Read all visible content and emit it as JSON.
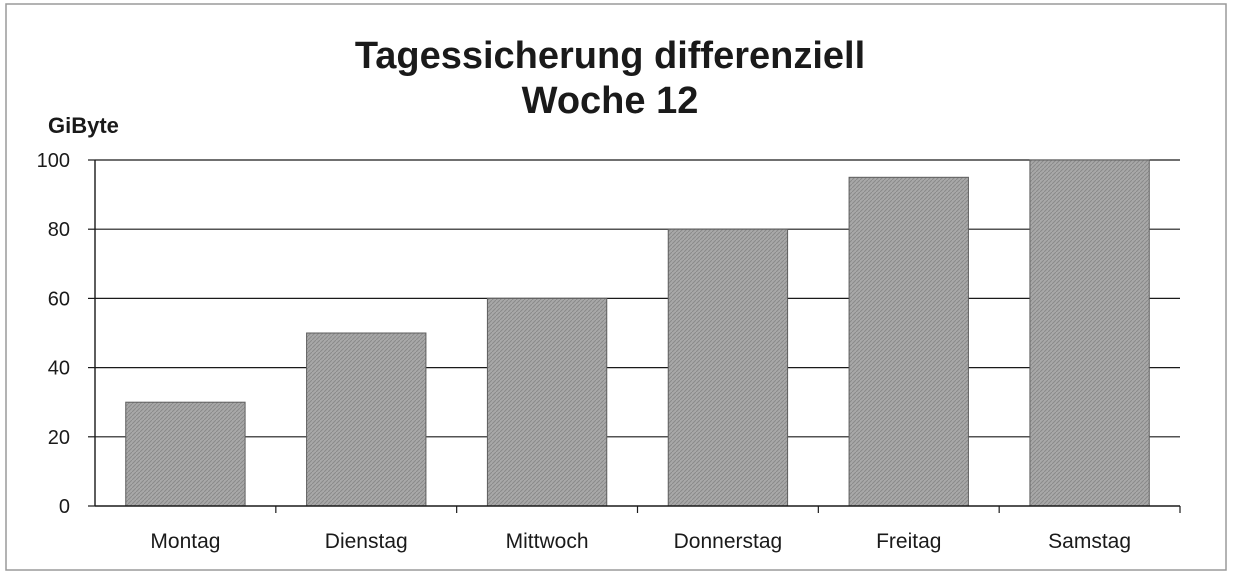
{
  "chart_data": {
    "type": "bar",
    "title": "Tagessicherung differenziell",
    "subtitle": "Woche 12",
    "ylabel": "GiByte",
    "xlabel": "",
    "categories": [
      "Montag",
      "Dienstag",
      "Mittwoch",
      "Donnerstag",
      "Freitag",
      "Samstag"
    ],
    "values": [
      30,
      50,
      60,
      80,
      95,
      100
    ],
    "ylim": [
      0,
      100
    ],
    "yticks": [
      0,
      20,
      40,
      60,
      80,
      100
    ],
    "grid": true,
    "legend": "none",
    "colors": {
      "bar_fill": "#a6a6a6",
      "bar_edge": "#5e5e5e",
      "grid": "#1a1a1a",
      "text": "#1a1a1a"
    }
  }
}
